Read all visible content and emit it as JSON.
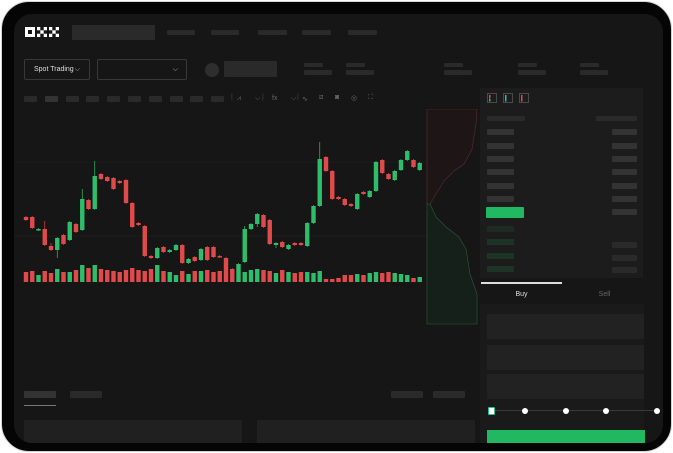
{
  "header": {
    "logo": "OKX"
  },
  "market": {
    "mode_select": "Spot Trading",
    "pair_select": ""
  },
  "order_panel": {
    "tabs": [
      "Buy",
      "Sell"
    ],
    "active_tab": "Buy"
  },
  "colors": {
    "up": "#2ebd6b",
    "down": "#e04a4a",
    "background": "#161616",
    "accent": "#22b862"
  },
  "icons": {
    "toolbar": [
      "indicator-icon",
      "candle-type-icon",
      "fx-icon",
      "line-icon",
      "ruler-icon",
      "camera-icon",
      "settings-icon",
      "fullscreen-icon"
    ],
    "orderbook": [
      "orderbook-both-icon",
      "orderbook-bids-icon",
      "orderbook-asks-icon"
    ]
  },
  "chart_data": {
    "type": "candlestick",
    "candles": [
      [
        97,
        97,
        94,
        94
      ],
      [
        97,
        97,
        86,
        86
      ],
      [
        84,
        85,
        84,
        85
      ],
      [
        85,
        92,
        69,
        69
      ],
      [
        68,
        70,
        64,
        64
      ],
      [
        64,
        76,
        57,
        76
      ],
      [
        79,
        79,
        70,
        70
      ],
      [
        74,
        92,
        74,
        92
      ],
      [
        90,
        90,
        82,
        82
      ],
      [
        84,
        124,
        84,
        115
      ],
      [
        114,
        114,
        105,
        105
      ],
      [
        105,
        152,
        105,
        138
      ],
      [
        140,
        140,
        135,
        135
      ],
      [
        137,
        137,
        133,
        133
      ],
      [
        136,
        136,
        125,
        125
      ],
      [
        133,
        133,
        131,
        131
      ],
      [
        134,
        134,
        111,
        111
      ],
      [
        111,
        111,
        87,
        87
      ],
      [
        91,
        91,
        89,
        89
      ],
      [
        88,
        88,
        58,
        58
      ],
      [
        58,
        58,
        56,
        56
      ],
      [
        56,
        66,
        56,
        66
      ],
      [
        67,
        67,
        62,
        62
      ],
      [
        62,
        64,
        62,
        64
      ],
      [
        64,
        69,
        64,
        69
      ],
      [
        69,
        69,
        51,
        51
      ],
      [
        51,
        55,
        51,
        55
      ],
      [
        57,
        57,
        53,
        53
      ],
      [
        54,
        65,
        54,
        65
      ],
      [
        67,
        67,
        54,
        54
      ],
      [
        67,
        67,
        57,
        57
      ],
      [
        58,
        58,
        57,
        57
      ],
      [
        56,
        56,
        44,
        44
      ],
      [
        45,
        45,
        44,
        44
      ],
      [
        43,
        50,
        43,
        50
      ],
      [
        52,
        87,
        52,
        85
      ],
      [
        85,
        90,
        85,
        90
      ],
      [
        90,
        100,
        88,
        100
      ],
      [
        99,
        99,
        87,
        87
      ],
      [
        94,
        94,
        70,
        70
      ],
      [
        69,
        71,
        67,
        71
      ],
      [
        72,
        72,
        67,
        67
      ],
      [
        65,
        69,
        65,
        69
      ],
      [
        71,
        71,
        69,
        69
      ],
      [
        71,
        71,
        69,
        69
      ],
      [
        68,
        91,
        68,
        91
      ],
      [
        91,
        108,
        91,
        108
      ],
      [
        108,
        171,
        108,
        155
      ],
      [
        157,
        157,
        143,
        143
      ],
      [
        143,
        143,
        115,
        115
      ],
      [
        117,
        117,
        115,
        115
      ],
      [
        115,
        115,
        109,
        109
      ],
      [
        110,
        110,
        108,
        108
      ],
      [
        105,
        120,
        105,
        120
      ],
      [
        122,
        122,
        120,
        120
      ],
      [
        117,
        123,
        117,
        123
      ],
      [
        123,
        152,
        123,
        152
      ],
      [
        154,
        154,
        141,
        141
      ],
      [
        140,
        140,
        135,
        135
      ],
      [
        134,
        143,
        134,
        143
      ],
      [
        144,
        154,
        144,
        154
      ],
      [
        154,
        163,
        154,
        163
      ],
      [
        154,
        154,
        147,
        147
      ],
      [
        144,
        151,
        144,
        151
      ]
    ],
    "volumes": [
      10,
      11,
      7,
      11,
      9,
      13,
      10,
      10,
      12,
      17,
      14,
      17,
      13,
      12,
      11,
      10,
      12,
      14,
      12,
      11,
      13,
      17,
      11,
      10,
      7,
      11,
      8,
      11,
      11,
      12,
      10,
      11,
      12,
      12,
      11,
      10,
      12,
      13,
      12,
      11,
      9,
      12,
      10,
      9,
      10,
      10,
      9,
      11,
      3,
      3,
      4,
      7,
      7,
      8,
      7,
      9,
      10,
      9,
      10,
      9,
      8,
      7,
      4,
      5
    ]
  }
}
